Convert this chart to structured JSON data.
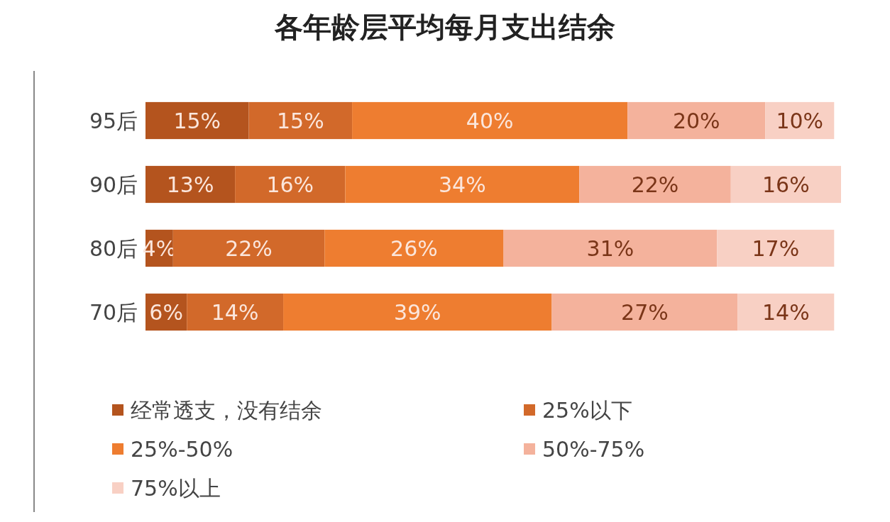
{
  "chart_data": {
    "type": "bar",
    "orientation": "horizontal",
    "stacked": true,
    "title": "各年龄层平均每月支出结余",
    "categories": [
      "95后",
      "90后",
      "80后",
      "70后"
    ],
    "series": [
      {
        "name": "经常透支，没有结余",
        "color": "#b4541e",
        "values": [
          15,
          13,
          4,
          6
        ],
        "value_labels": [
          "15%",
          "13%",
          "4%",
          "6%"
        ]
      },
      {
        "name": "25%以下",
        "color": "#d2692a",
        "values": [
          15,
          16,
          22,
          14
        ],
        "value_labels": [
          "15%",
          "16%",
          "22%",
          "14%"
        ]
      },
      {
        "name": "25%-50%",
        "color": "#ee7d30",
        "values": [
          40,
          34,
          26,
          39
        ],
        "value_labels": [
          "40%",
          "34%",
          "26%",
          "39%"
        ]
      },
      {
        "name": "50%-75%",
        "color": "#f4b29c",
        "values": [
          20,
          22,
          31,
          27
        ],
        "value_labels": [
          "20%",
          "22%",
          "31%",
          "27%"
        ]
      },
      {
        "name": "75%以上",
        "color": "#f8d0c4",
        "values": [
          10,
          16,
          17,
          14
        ],
        "value_labels": [
          "10%",
          "16%",
          "17%",
          "14%"
        ]
      }
    ],
    "legend": "bottom",
    "tick_labels": "y"
  }
}
